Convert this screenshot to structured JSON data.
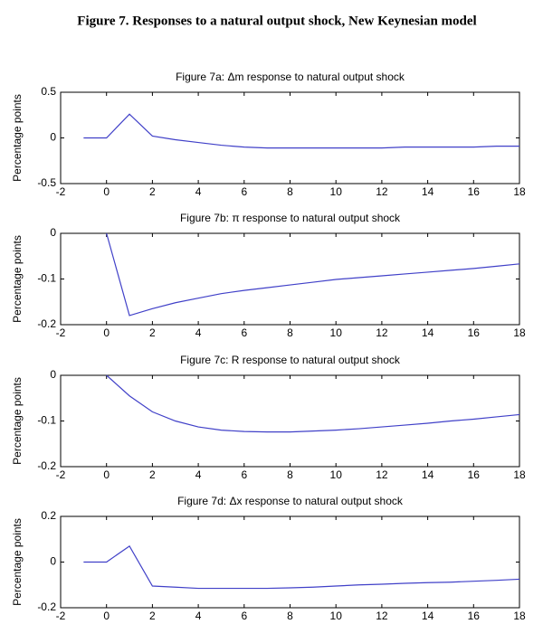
{
  "title": "Figure 7. Responses to a natural output shock, New Keynesian model",
  "chart_data": [
    {
      "type": "line",
      "title": "Figure 7a: Δm response to natural output shock",
      "ylabel": "Percentage points",
      "x": [
        -1,
        0,
        1,
        2,
        3,
        4,
        5,
        6,
        7,
        8,
        9,
        10,
        11,
        12,
        13,
        14,
        15,
        16,
        17,
        18
      ],
      "series": [
        {
          "color": "#4040c8",
          "values": [
            0,
            0,
            0.26,
            0.02,
            -0.02,
            -0.05,
            -0.08,
            -0.1,
            -0.11,
            -0.11,
            -0.11,
            -0.11,
            -0.11,
            -0.11,
            -0.1,
            -0.1,
            -0.1,
            -0.1,
            -0.09,
            -0.09
          ]
        }
      ],
      "xlim": [
        -2,
        18
      ],
      "xticks": [
        -2,
        0,
        2,
        4,
        6,
        8,
        10,
        12,
        14,
        16,
        18
      ],
      "ylim": [
        -0.5,
        0.5
      ],
      "yticks": [
        -0.5,
        0,
        0.5
      ]
    },
    {
      "type": "line",
      "title": "Figure 7b: π response to natural output shock",
      "ylabel": "Percentage points",
      "x": [
        0,
        1,
        2,
        3,
        4,
        5,
        6,
        7,
        8,
        9,
        10,
        11,
        12,
        13,
        14,
        15,
        16,
        17,
        18
      ],
      "series": [
        {
          "color": "#4040c8",
          "values": [
            0,
            -0.18,
            -0.165,
            -0.152,
            -0.142,
            -0.132,
            -0.125,
            -0.119,
            -0.113,
            -0.107,
            -0.101,
            -0.097,
            -0.093,
            -0.089,
            -0.085,
            -0.081,
            -0.077,
            -0.072,
            -0.067
          ]
        }
      ],
      "xlim": [
        -2,
        18
      ],
      "xticks": [
        -2,
        0,
        2,
        4,
        6,
        8,
        10,
        12,
        14,
        16,
        18
      ],
      "ylim": [
        -0.2,
        0
      ],
      "yticks": [
        -0.2,
        -0.1,
        0
      ]
    },
    {
      "type": "line",
      "title": "Figure 7c: R response to natural output shock",
      "ylabel": "Percentage points",
      "x": [
        0,
        1,
        2,
        3,
        4,
        5,
        6,
        7,
        8,
        9,
        10,
        11,
        12,
        13,
        14,
        15,
        16,
        17,
        18
      ],
      "series": [
        {
          "color": "#4040c8",
          "values": [
            0,
            -0.045,
            -0.08,
            -0.1,
            -0.113,
            -0.12,
            -0.123,
            -0.124,
            -0.124,
            -0.122,
            -0.12,
            -0.117,
            -0.113,
            -0.109,
            -0.105,
            -0.1,
            -0.096,
            -0.091,
            -0.086
          ]
        }
      ],
      "xlim": [
        -2,
        18
      ],
      "xticks": [
        -2,
        0,
        2,
        4,
        6,
        8,
        10,
        12,
        14,
        16,
        18
      ],
      "ylim": [
        -0.2,
        0
      ],
      "yticks": [
        -0.2,
        -0.1,
        0
      ]
    },
    {
      "type": "line",
      "title": "Figure 7d: Δx response to natural output shock",
      "ylabel": "Percentage points",
      "x": [
        -1,
        0,
        1,
        2,
        3,
        4,
        5,
        6,
        7,
        8,
        9,
        10,
        11,
        12,
        13,
        14,
        15,
        16,
        17,
        18
      ],
      "series": [
        {
          "color": "#4040c8",
          "values": [
            0,
            0,
            0.07,
            -0.105,
            -0.11,
            -0.115,
            -0.115,
            -0.115,
            -0.115,
            -0.113,
            -0.11,
            -0.105,
            -0.1,
            -0.097,
            -0.093,
            -0.09,
            -0.088,
            -0.084,
            -0.08,
            -0.075
          ]
        }
      ],
      "xlim": [
        -2,
        18
      ],
      "xticks": [
        -2,
        0,
        2,
        4,
        6,
        8,
        10,
        12,
        14,
        16,
        18
      ],
      "ylim": [
        -0.2,
        0.2
      ],
      "yticks": [
        -0.2,
        0,
        0.2
      ]
    }
  ]
}
